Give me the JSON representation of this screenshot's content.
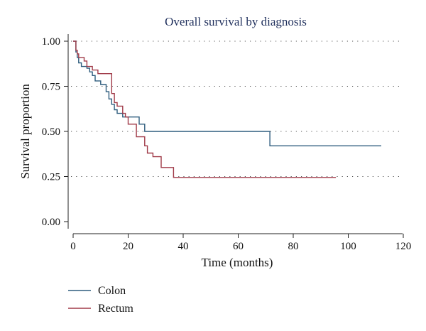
{
  "chart_data": {
    "type": "line",
    "title": "Overall survival by diagnosis",
    "xlabel": "Time (months)",
    "ylabel": "Survival proportion",
    "xlim": [
      0,
      120
    ],
    "ylim": [
      0,
      1
    ],
    "x_ticks": [
      0,
      20,
      40,
      60,
      80,
      100,
      120
    ],
    "y_ticks": [
      0,
      0.25,
      0.5,
      0.75,
      1.0
    ],
    "y_tick_labels": [
      "0.00",
      "0.25",
      "0.50",
      "0.75",
      "1.00"
    ],
    "x_tick_labels": [
      "0",
      "20",
      "40",
      "60",
      "80",
      "100",
      "120"
    ],
    "grid": "horizontal-dotted",
    "legend_position": "bottom-left",
    "series": [
      {
        "name": "Colon",
        "color": "#2f5d7e",
        "step": true,
        "x": [
          0,
          1,
          1.5,
          2,
          3,
          4,
          5,
          6,
          7,
          8,
          10,
          12,
          13,
          14,
          15,
          16,
          17,
          18,
          19,
          20,
          24,
          26,
          71.5,
          112
        ],
        "y": [
          1.0,
          0.94,
          0.91,
          0.88,
          0.86,
          0.86,
          0.85,
          0.83,
          0.81,
          0.78,
          0.76,
          0.72,
          0.68,
          0.65,
          0.62,
          0.6,
          0.6,
          0.58,
          0.58,
          0.58,
          0.54,
          0.5,
          0.42,
          0.42
        ]
      },
      {
        "name": "Rectum",
        "color": "#a03a48",
        "step": true,
        "x": [
          0,
          1,
          1.5,
          2,
          4,
          5,
          7,
          9,
          11,
          14,
          15,
          16,
          18,
          19,
          20,
          23,
          26,
          27,
          29,
          32,
          36.5,
          95.5
        ],
        "y": [
          1.0,
          0.95,
          0.93,
          0.91,
          0.89,
          0.86,
          0.84,
          0.82,
          0.82,
          0.71,
          0.66,
          0.64,
          0.6,
          0.58,
          0.54,
          0.47,
          0.42,
          0.38,
          0.36,
          0.3,
          0.245,
          0.245
        ]
      }
    ]
  }
}
